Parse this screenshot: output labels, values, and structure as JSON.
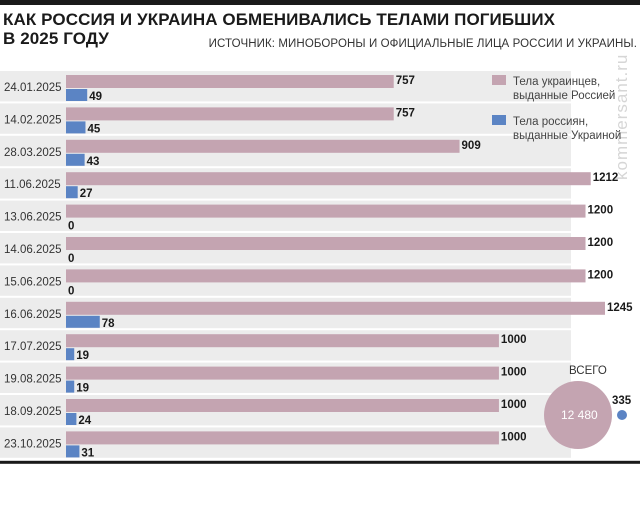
{
  "header": {
    "title": "КАК РОССИЯ И УКРАИНА ОБМЕНИВАЛИСЬ ТЕЛАМИ ПОГИБШИХ\nВ 2025 ГОДУ",
    "source": "ИСТОЧНИК: МИНОБОРОНЫ И ОФИЦИАЛЬНЫЕ ЛИЦА РОССИИ И УКРАИНЫ."
  },
  "watermark": "kommersant.ru",
  "colors": {
    "ukraine_bodies": "#c4a4b1",
    "russia_bodies": "#5b84c4",
    "row_background": "#ececec",
    "rule": "#1a1a1a"
  },
  "legend": {
    "ua_label_line1": "Тела украинцев,",
    "ua_label_line2": "выданные Россией",
    "ru_label_line1": "Тела россиян,",
    "ru_label_line2": "выданные Украиной"
  },
  "totals": {
    "heading": "ВСЕГО",
    "ukraine": "12 480",
    "russia": "335",
    "ukraine_value": 12480,
    "russia_value": 335
  },
  "chart_data": {
    "type": "bar",
    "orientation": "horizontal",
    "categories": [
      "24.01.2025",
      "14.02.2025",
      "28.03.2025",
      "11.06.2025",
      "13.06.2025",
      "14.06.2025",
      "15.06.2025",
      "16.06.2025",
      "17.07.2025",
      "19.08.2025",
      "18.09.2025",
      "23.10.2025"
    ],
    "series": [
      {
        "name": "Тела украинцев, выданные Россией",
        "values": [
          757,
          757,
          909,
          1212,
          1200,
          1200,
          1200,
          1245,
          1000,
          1000,
          1000,
          1000
        ]
      },
      {
        "name": "Тела россиян, выданные Украиной",
        "values": [
          49,
          45,
          43,
          27,
          0,
          0,
          0,
          78,
          19,
          19,
          24,
          31
        ]
      }
    ],
    "xlim": [
      0,
      1245
    ],
    "grid": false,
    "legend_position": "top-right"
  }
}
